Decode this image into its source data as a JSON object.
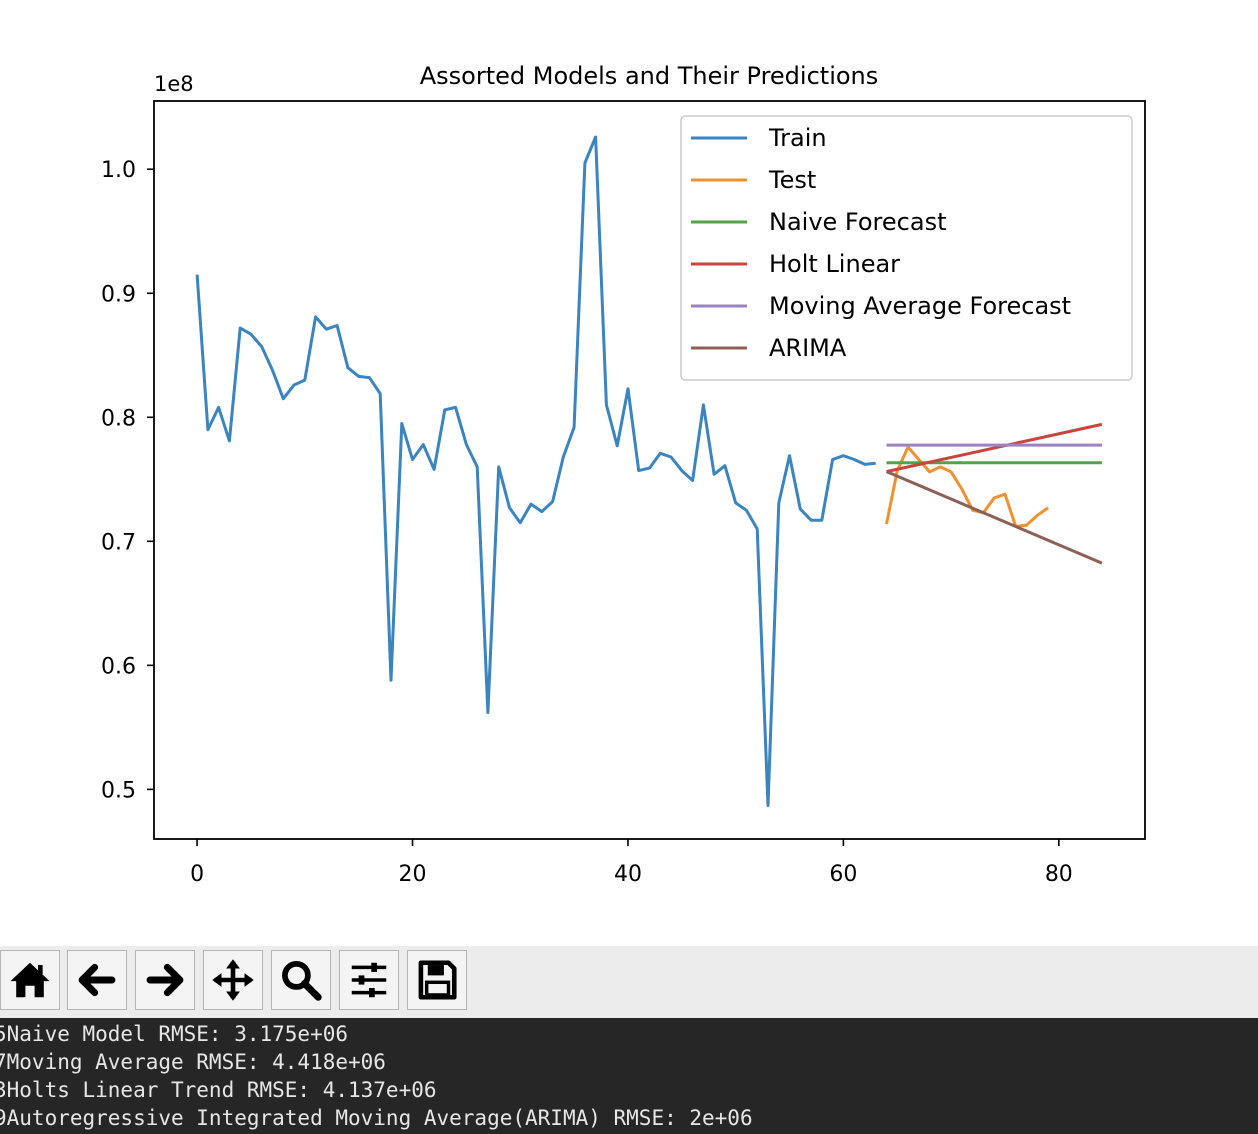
{
  "chart_data": {
    "type": "line",
    "title": "Assorted Models and Their Predictions",
    "offset_text": "1e8",
    "xlim": [
      -4,
      88
    ],
    "ylim": [
      0.46,
      1.055
    ],
    "x_ticks": [
      0,
      20,
      40,
      60,
      80
    ],
    "y_ticks": [
      0.5,
      0.6,
      0.7,
      0.8,
      0.9,
      1.0
    ],
    "x_tick_labels": [
      "0",
      "20",
      "40",
      "60",
      "80"
    ],
    "y_tick_labels": [
      "0.5",
      "0.6",
      "0.7",
      "0.8",
      "0.9",
      "1.0"
    ],
    "legend_position": "upper right",
    "series": [
      {
        "name": "Train",
        "color": "#3a84c0",
        "x": [
          0,
          1,
          2,
          3,
          4,
          5,
          6,
          7,
          8,
          9,
          10,
          11,
          12,
          13,
          14,
          15,
          16,
          17,
          18,
          19,
          20,
          21,
          22,
          23,
          24,
          25,
          26,
          27,
          28,
          29,
          30,
          31,
          32,
          33,
          34,
          35,
          36,
          37,
          38,
          39,
          40,
          41,
          42,
          43,
          44,
          45,
          46,
          47,
          48,
          49,
          50,
          51,
          52,
          53,
          54,
          55,
          56,
          57,
          58,
          59,
          60,
          61,
          62,
          63
        ],
        "y": [
          0.915,
          0.79,
          0.808,
          0.781,
          0.872,
          0.867,
          0.857,
          0.838,
          0.815,
          0.826,
          0.83,
          0.881,
          0.871,
          0.874,
          0.84,
          0.833,
          0.832,
          0.819,
          0.588,
          0.795,
          0.766,
          0.778,
          0.758,
          0.806,
          0.808,
          0.778,
          0.76,
          0.562,
          0.76,
          0.727,
          0.715,
          0.73,
          0.724,
          0.732,
          0.768,
          0.792,
          1.005,
          1.026,
          0.81,
          0.777,
          0.823,
          0.757,
          0.759,
          0.771,
          0.768,
          0.757,
          0.749,
          0.81,
          0.754,
          0.761,
          0.731,
          0.725,
          0.71,
          0.487,
          0.731,
          0.769,
          0.726,
          0.717,
          0.717,
          0.766,
          0.769,
          0.766,
          0.762,
          0.763
        ]
      },
      {
        "name": "Test",
        "color": "#f0902f",
        "x": [
          64,
          65,
          66,
          67,
          68,
          69,
          70,
          71,
          72,
          73,
          74,
          75,
          76,
          77,
          78,
          79
        ],
        "y": [
          0.714,
          0.757,
          0.776,
          0.766,
          0.756,
          0.76,
          0.756,
          0.742,
          0.725,
          0.723,
          0.735,
          0.738,
          0.712,
          0.713,
          0.721,
          0.727
        ]
      },
      {
        "name": "Naive Forecast",
        "color": "#55a04a",
        "x": [
          64,
          84
        ],
        "y": [
          0.7633,
          0.7633
        ]
      },
      {
        "name": "Holt Linear",
        "color": "#c9443a",
        "x": [
          64,
          84
        ],
        "y": [
          0.7562,
          0.7943
        ]
      },
      {
        "name": "Moving Average Forecast",
        "color": "#9a83c0",
        "x": [
          64,
          84
        ],
        "y": [
          0.7776,
          0.7776
        ]
      },
      {
        "name": "ARIMA",
        "color": "#8c6055",
        "x": [
          64,
          84
        ],
        "y": [
          0.7562,
          0.6824
        ]
      }
    ]
  },
  "toolbar": {
    "buttons": [
      "home-icon",
      "back-arrow-icon",
      "forward-arrow-icon",
      "pan-icon",
      "zoom-icon",
      "configure-subplots-icon",
      "save-icon"
    ]
  },
  "console": {
    "lines": [
      "5Naive Model RMSE: 3.175e+06",
      "7Moving Average RMSE: 4.418e+06",
      "3Holts Linear Trend RMSE: 4.137e+06",
      "9Autoregressive Integrated Moving Average(ARIMA) RMSE: 2e+06"
    ]
  }
}
